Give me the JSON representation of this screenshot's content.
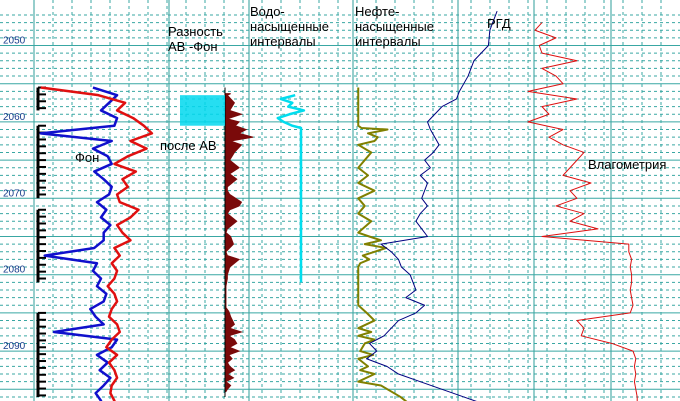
{
  "chart_data": {
    "type": "line",
    "title": "",
    "ylabel": "",
    "depth_range": [
      2045.5,
      2097
    ],
    "depth_ticks": [
      2050,
      2060,
      2070,
      2080,
      2090
    ],
    "grid": true,
    "track_labels": {
      "difference": "Разность АВ -Фон",
      "water": "Водо-насыщенные интервалы",
      "oil": "Нефте-насыщенные интервалы",
      "rgd": "РГД"
    },
    "annotations": {
      "background": "Фон",
      "after": "после АВ",
      "moisture": "Влагометрия"
    },
    "colors": {
      "background": "#1010cc",
      "after": "#e01010",
      "difference": "#7a0a0a",
      "water": "#00ddee",
      "oil": "#808000",
      "rgd": "#000080",
      "moisture": "#dd1010"
    },
    "series": [
      {
        "name": "Фон",
        "depth": [
          2055.5,
          2056.5,
          2057.5,
          2058.5,
          2059.5,
          2060.5,
          2061.5,
          2062.5,
          2063.5,
          2064.5,
          2065.5,
          2066.5,
          2067.5,
          2068.5,
          2069.5,
          2070.5,
          2071.5,
          2072.5,
          2073.5,
          2074.5,
          2075.5,
          2076.5,
          2077.5,
          2078.5,
          2079.5,
          2080.5,
          2081.5,
          2082.5,
          2083.5,
          2084.5,
          2085.5,
          2086.5,
          2087.5,
          2088.5,
          2089.5,
          2090.5,
          2091.5,
          2092.5,
          2093.5,
          2094.5,
          2095.5,
          2096.5,
          2097
        ],
        "values": [
          0.44,
          0.62,
          0.56,
          0.5,
          0.62,
          0.6,
          0.05,
          0.58,
          0.44,
          0.55,
          0.58,
          0.45,
          0.52,
          0.58,
          0.56,
          0.47,
          0.54,
          0.5,
          0.57,
          0.52,
          0.52,
          0.45,
          0.08,
          0.47,
          0.44,
          0.5,
          0.47,
          0.54,
          0.52,
          0.42,
          0.46,
          0.52,
          0.15,
          0.62,
          0.58,
          0.47,
          0.55,
          0.49,
          0.57,
          0.52,
          0.46,
          0.5,
          0.48
        ]
      },
      {
        "name": "после АВ",
        "depth": [
          2055.5,
          2056.5,
          2057.5,
          2058.5,
          2059.5,
          2060.5,
          2061.5,
          2062.5,
          2063.5,
          2064.5,
          2065.5,
          2066.5,
          2067.5,
          2068.5,
          2069.5,
          2070.5,
          2071.5,
          2072.5,
          2073.5,
          2074.5,
          2075.5,
          2076.5,
          2077.5,
          2078.5,
          2079.5,
          2080.5,
          2081.5,
          2082.5,
          2083.5,
          2084.5,
          2085.5,
          2086.5,
          2087.5,
          2088.5,
          2089.5,
          2090.5,
          2091.5,
          2092.5,
          2093.5,
          2094.5,
          2095.5,
          2096.5,
          2097
        ],
        "values": [
          0.05,
          0.48,
          0.68,
          0.62,
          0.74,
          0.82,
          0.88,
          0.72,
          0.84,
          0.7,
          0.6,
          0.76,
          0.66,
          0.7,
          0.62,
          0.64,
          0.78,
          0.72,
          0.62,
          0.66,
          0.72,
          0.6,
          0.64,
          0.58,
          0.62,
          0.6,
          0.55,
          0.6,
          0.62,
          0.58,
          0.56,
          0.62,
          0.64,
          0.58,
          0.54,
          0.62,
          0.56,
          0.6,
          0.62,
          0.58,
          0.57,
          0.6,
          0.58
        ]
      },
      {
        "name": "Разность АВ -Фон",
        "depth": [
          2056.3,
          2056.5,
          2057.5,
          2058.5,
          2059,
          2059.3,
          2059.6,
          2060,
          2060.5,
          2061,
          2061.5,
          2062,
          2062.5,
          2063,
          2064,
          2065,
          2066,
          2066.8,
          2067.5,
          2068.5,
          2069,
          2069.5,
          2070.5,
          2071,
          2071.5,
          2072,
          2073,
          2074,
          2074.5,
          2075,
          2076,
          2077,
          2077.5,
          2078,
          2079,
          2080,
          2080.5,
          2081.5,
          2084.3,
          2084.8,
          2085.5,
          2086.5,
          2087,
          2087.5,
          2088,
          2088.5,
          2089,
          2089.5,
          2090,
          2090.5,
          2091,
          2091.5,
          2092,
          2092.5,
          2093,
          2093.5,
          2094,
          2094.5,
          2095,
          2095.3
        ],
        "values": [
          0.12,
          0.05,
          0.2,
          0.1,
          0.35,
          0.2,
          0.05,
          0.3,
          0.22,
          0.45,
          0.3,
          0.6,
          0.12,
          0.35,
          0.2,
          0.1,
          0.3,
          0.1,
          0.25,
          0.05,
          0.05,
          0.1,
          0.35,
          0.3,
          0.1,
          0.05,
          0.25,
          0.05,
          0.02,
          0.12,
          0.18,
          0.02,
          0.05,
          0.3,
          0.1,
          0.05,
          0.05,
          0.02,
          0.02,
          0.08,
          0.12,
          0.2,
          0.1,
          0.35,
          0.08,
          0.2,
          0.25,
          0.1,
          0.3,
          0.08,
          0.15,
          0.05,
          0.1,
          0.2,
          0.05,
          0.18,
          0.02,
          0.12,
          0.05,
          0.02
        ]
      },
      {
        "name": "Водо-насыщенные интервалы",
        "depth": [
          2056.5,
          2057,
          2057.5,
          2058,
          2058.5,
          2059,
          2059.5,
          2060,
          2060.5,
          2060.8,
          2081
        ],
        "values": [
          0.4,
          0.15,
          0.35,
          0.28,
          0.55,
          0.3,
          0.1,
          0.2,
          0.35,
          0.5,
          0.5
        ]
      },
      {
        "name": "Нефте-насыщенные интервалы",
        "depth": [
          2055.5,
          2060.5,
          2060.8,
          2061,
          2061.5,
          2062,
          2062.5,
          2063,
          2064,
          2066,
          2067,
          2068,
          2069,
          2070,
          2071,
          2072,
          2073,
          2074.5,
          2075,
          2075.5,
          2076,
          2076.5,
          2077,
          2077.5,
          2078,
          2078.5,
          2079,
          2081,
          2084,
          2085,
          2086,
          2087,
          2087.5,
          2088,
          2088.5,
          2089,
          2090,
          2090.5,
          2091,
          2092,
          2092.5,
          2093,
          2094,
          2094.5,
          2095,
          2096,
          2097
        ],
        "values": [
          0.05,
          0.05,
          0.1,
          0.5,
          0.2,
          0.35,
          0.3,
          0.05,
          0.25,
          0.05,
          0.2,
          0.05,
          0.3,
          0.05,
          0.15,
          0.05,
          0.25,
          0.05,
          0.22,
          0.4,
          0.15,
          0.48,
          0.3,
          0.12,
          0.22,
          0.08,
          0.05,
          0.05,
          0.05,
          0.18,
          0.3,
          0.05,
          0.25,
          0.05,
          0.3,
          0.15,
          0.08,
          0.28,
          0.05,
          0.2,
          0.08,
          0.3,
          0.05,
          0.4,
          0.5,
          0.7,
          0.85
        ]
      },
      {
        "name": "РГД",
        "depth": [
          2045.5,
          2048,
          2050,
          2052,
          2054,
          2056,
          2057,
          2058,
          2059,
          2060,
          2061,
          2062,
          2063,
          2064,
          2065,
          2066,
          2067,
          2068,
          2069,
          2070,
          2071,
          2072,
          2073,
          2074,
          2075,
          2076,
          2077,
          2078,
          2079,
          2080,
          2081,
          2082,
          2083,
          2084,
          2085,
          2086,
          2087,
          2088,
          2089,
          2090,
          2091,
          2092,
          2093,
          2094,
          2095,
          2096,
          2097
        ],
        "values": [
          0.98,
          0.93,
          0.92,
          0.82,
          0.78,
          0.72,
          0.7,
          0.6,
          0.55,
          0.5,
          0.52,
          0.55,
          0.58,
          0.54,
          0.48,
          0.52,
          0.45,
          0.5,
          0.48,
          0.46,
          0.5,
          0.45,
          0.42,
          0.46,
          0.5,
          0.18,
          0.25,
          0.3,
          0.32,
          0.38,
          0.4,
          0.42,
          0.35,
          0.48,
          0.42,
          0.3,
          0.25,
          0.2,
          0.1,
          0.15,
          0.08,
          0.22,
          0.3,
          0.45,
          0.6,
          0.75,
          0.9
        ]
      },
      {
        "name": "Влагометрия",
        "depth": [
          2047,
          2048,
          2049,
          2050,
          2051,
          2052,
          2053,
          2054,
          2055,
          2056,
          2057,
          2058,
          2059,
          2060,
          2061,
          2062,
          2063,
          2064,
          2065,
          2066,
          2067,
          2068,
          2069,
          2070,
          2071,
          2072,
          2073,
          2074,
          2075,
          2076,
          2077,
          2078,
          2079,
          2080,
          2081,
          2082,
          2083,
          2084,
          2085,
          2086,
          2087,
          2088,
          2089,
          2090,
          2091,
          2092,
          2093,
          2094,
          2095,
          2096,
          2097
        ],
        "values": [
          0.3,
          0.25,
          0.4,
          0.28,
          0.3,
          0.55,
          0.3,
          0.4,
          0.45,
          0.2,
          0.55,
          0.3,
          0.35,
          0.2,
          0.45,
          0.35,
          0.45,
          0.6,
          0.55,
          0.5,
          0.45,
          0.65,
          0.5,
          0.55,
          0.4,
          0.6,
          0.5,
          0.7,
          0.3,
          0.92,
          0.92,
          0.94,
          0.93,
          0.94,
          0.94,
          0.93,
          0.94,
          0.95,
          0.93,
          0.55,
          0.6,
          0.58,
          0.8,
          0.95,
          0.97,
          0.96,
          0.97,
          0.96,
          0.97,
          0.98,
          0.98
        ]
      }
    ]
  }
}
